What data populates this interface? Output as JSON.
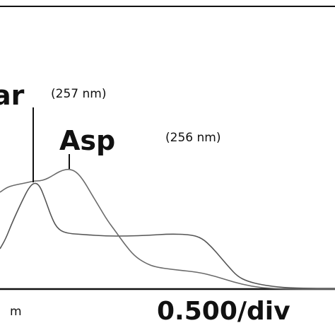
{
  "chart_data": {
    "type": "line",
    "series": [
      {
        "name": "Tar",
        "color": "#555555",
        "points": [
          [
            0,
            352
          ],
          [
            8,
            338
          ],
          [
            16,
            318
          ],
          [
            24,
            300
          ],
          [
            32,
            283
          ],
          [
            40,
            267
          ],
          [
            48,
            258
          ],
          [
            56,
            262
          ],
          [
            64,
            282
          ],
          [
            72,
            305
          ],
          [
            80,
            322
          ],
          [
            92,
            330
          ],
          [
            120,
            332
          ],
          [
            150,
            334
          ],
          [
            180,
            334
          ],
          [
            210,
            333
          ],
          [
            240,
            331
          ],
          [
            270,
            332
          ],
          [
            286,
            337
          ],
          [
            300,
            350
          ],
          [
            312,
            364
          ],
          [
            324,
            378
          ],
          [
            336,
            391
          ],
          [
            350,
            398
          ],
          [
            370,
            403
          ],
          [
            400,
            407
          ],
          [
            440,
            408
          ],
          [
            474,
            408
          ]
        ]
      },
      {
        "name": "Asp",
        "color": "#6a6a6a",
        "points": [
          [
            0,
            272
          ],
          [
            10,
            265
          ],
          [
            20,
            262
          ],
          [
            30,
            260
          ],
          [
            40,
            258
          ],
          [
            48,
            256
          ],
          [
            56,
            256
          ],
          [
            64,
            254
          ],
          [
            72,
            250
          ],
          [
            80,
            245
          ],
          [
            88,
            241
          ],
          [
            98,
            239
          ],
          [
            108,
            243
          ],
          [
            118,
            255
          ],
          [
            128,
            272
          ],
          [
            140,
            292
          ],
          [
            152,
            312
          ],
          [
            164,
            328
          ],
          [
            176,
            345
          ],
          [
            190,
            362
          ],
          [
            205,
            372
          ],
          [
            220,
            378
          ],
          [
            250,
            382
          ],
          [
            280,
            385
          ],
          [
            305,
            391
          ],
          [
            330,
            399
          ],
          [
            355,
            405
          ],
          [
            380,
            408
          ],
          [
            410,
            409
          ],
          [
            474,
            409
          ]
        ]
      }
    ],
    "peaks": [
      {
        "label": "ar",
        "wavelength_text": "(257 nm)"
      },
      {
        "label": "Asp",
        "wavelength_text": "(256 nm)"
      }
    ],
    "xlabel": "m",
    "scale_label": "0.500/div",
    "grid": false
  }
}
